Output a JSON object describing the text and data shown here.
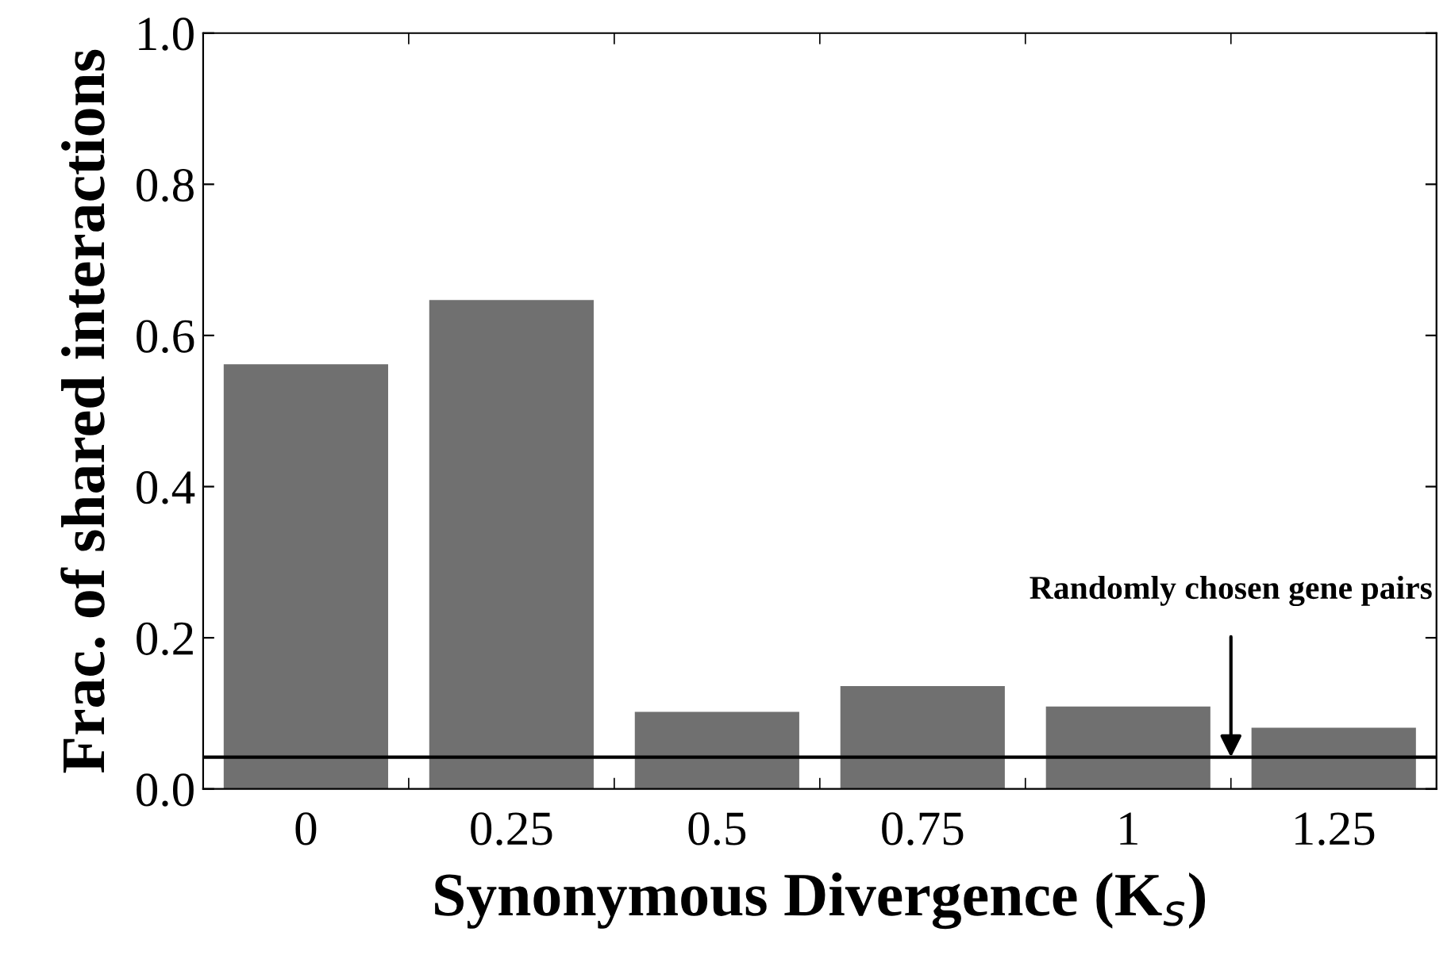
{
  "chart_data": {
    "type": "bar",
    "categories": [
      "0",
      "0.25",
      "0.5",
      "0.75",
      "1",
      "1.25"
    ],
    "values": [
      0.562,
      0.647,
      0.102,
      0.136,
      0.109,
      0.081
    ],
    "color": "#707070",
    "xlabel": "Synonymous Divergence (K$_{s}$)",
    "ylabel": "Frac. of shared interactions",
    "ylim": [
      0,
      1.0
    ],
    "yticks": [
      {
        "value": 0,
        "label": "0.0"
      },
      0.2,
      0.4,
      0.6,
      0.8,
      {
        "value": 1.0,
        "label": "1.0"
      }
    ],
    "ref_lines": [
      {
        "axis": "y",
        "value": 0.042,
        "label": "Randomly chosen gene pairs",
        "color": "#000000"
      }
    ],
    "grid": false,
    "legend": false
  }
}
